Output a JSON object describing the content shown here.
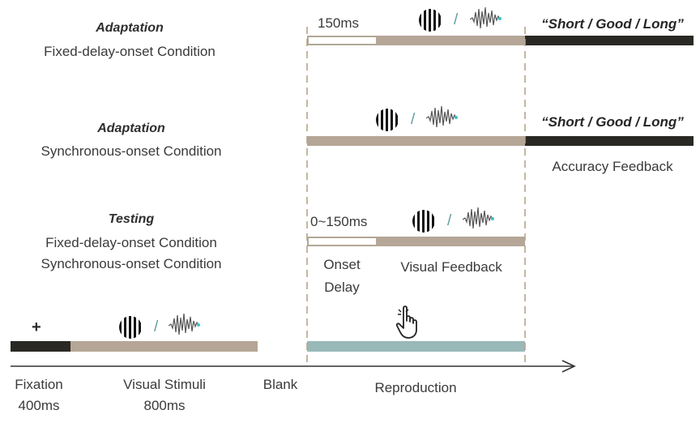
{
  "rows": {
    "adaptation_fixed": {
      "heading": "Adaptation",
      "condition": "Fixed-delay-onset Condition",
      "delay_label": "150ms",
      "slash": "/",
      "feedback_text": "“Short / Good / Long”"
    },
    "adaptation_sync": {
      "heading": "Adaptation",
      "condition": "Synchronous-onset Condition",
      "slash": "/",
      "feedback_text": "“Short / Good / Long”",
      "feedback_caption": "Accuracy Feedback"
    },
    "testing": {
      "heading": "Testing",
      "condition_1": "Fixed-delay-onset Condition",
      "condition_2": "Synchronous-onset Condition",
      "delay_label": "0~150ms",
      "slash": "/",
      "onset_label_1": "Onset",
      "onset_label_2": "Delay",
      "visual_feedback_label": "Visual Feedback"
    }
  },
  "timeline": {
    "fixation_label": "Fixation",
    "fixation_duration": "400ms",
    "fixation_symbol": "+",
    "stimuli_label": "Visual Stimuli",
    "stimuli_duration": "800ms",
    "slash": "/",
    "blank_label": "Blank",
    "reproduction_label": "Reproduction"
  },
  "icons": {
    "grating": "grating-icon",
    "waveform": "waveform-icon",
    "hand": "hand-pointer-icon"
  },
  "colors": {
    "beige_bar": "#b5a697",
    "dark_bar": "#2a2823",
    "teal_bar": "#99b8b8",
    "slash": "#5f9ea0",
    "wave_dot": "#3fc1c9",
    "dashed_line": "#b5a48f"
  }
}
